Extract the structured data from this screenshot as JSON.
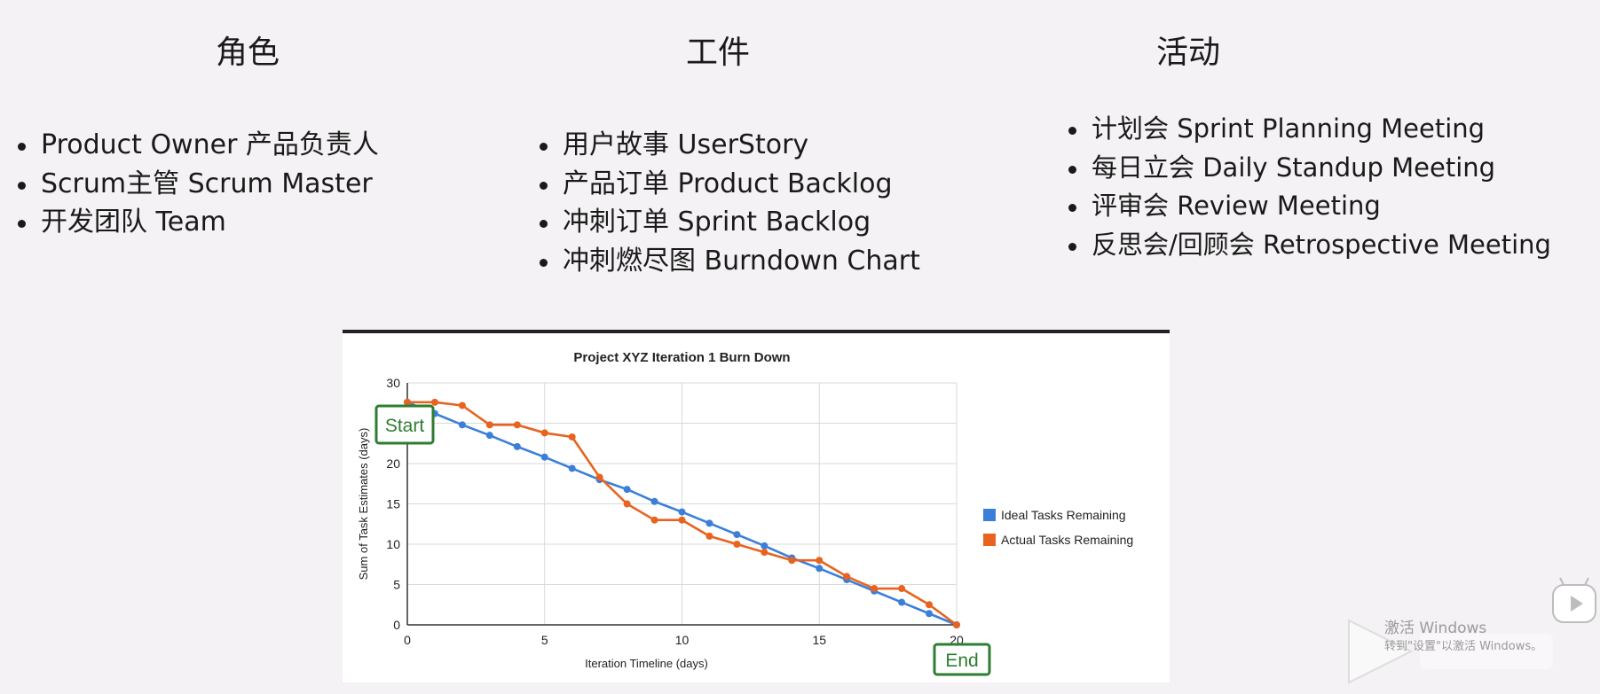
{
  "columns": [
    {
      "title": "角色",
      "items": [
        "Product Owner 产品负责人",
        "Scrum主管 Scrum Master",
        "开发团队 Team"
      ]
    },
    {
      "title": "工件",
      "items": [
        "用户故事 UserStory",
        "产品订单 Product Backlog",
        "冲刺订单 Sprint Backlog",
        "冲刺燃尽图 Burndown Chart"
      ]
    },
    {
      "title": "活动",
      "items": [
        "计划会 Sprint Planning Meeting",
        "每日立会 Daily Standup Meeting",
        "评审会 Review Meeting",
        "反思会/回顾会 Retrospective Meeting"
      ]
    }
  ],
  "chart_data": {
    "type": "line",
    "title": "Project XYZ Iteration 1 Burn Down",
    "xlabel": "Iteration Timeline (days)",
    "ylabel": "Sum of Task Estimates (days)",
    "xlim": [
      0,
      20
    ],
    "ylim": [
      0,
      30
    ],
    "x_ticks": [
      "0",
      "5",
      "10",
      "15",
      "20"
    ],
    "y_ticks": [
      "0",
      "5",
      "10",
      "15",
      "20",
      "25",
      "30"
    ],
    "grid": true,
    "legend_position": "right",
    "x": [
      0,
      1,
      2,
      3,
      4,
      5,
      6,
      7,
      8,
      9,
      10,
      11,
      12,
      13,
      14,
      15,
      16,
      17,
      18,
      19,
      20
    ],
    "series": [
      {
        "name": "Ideal Tasks Remaining",
        "color": "#3b7fd9",
        "values": [
          27.6,
          26.2,
          24.8,
          23.5,
          22.1,
          20.8,
          19.4,
          18.0,
          16.8,
          15.3,
          14.0,
          12.6,
          11.2,
          9.8,
          8.3,
          7.0,
          5.6,
          4.2,
          2.8,
          1.4,
          0
        ]
      },
      {
        "name": "Actual Tasks Remaining",
        "color": "#e8631f",
        "values": [
          27.6,
          27.6,
          27.2,
          24.8,
          24.8,
          23.8,
          23.3,
          18.3,
          15.0,
          13.0,
          13.0,
          11.0,
          10.0,
          9.0,
          8.0,
          8.0,
          6.0,
          4.5,
          4.5,
          2.5,
          0
        ]
      }
    ],
    "annotations": [
      {
        "text": "Start",
        "color": "#2e7d32"
      },
      {
        "text": "End",
        "color": "#2e7d32"
      }
    ]
  },
  "watermark": {
    "line1": "激活 Windows",
    "line2": "转到\"设置\"以激活 Windows。"
  }
}
